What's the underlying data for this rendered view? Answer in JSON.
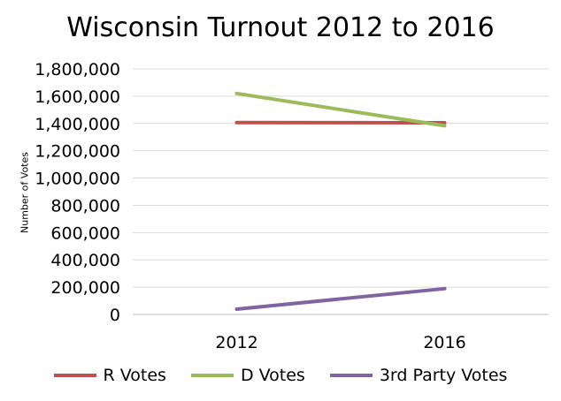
{
  "chart_data": {
    "type": "line",
    "title": "Wisconsin Turnout 2012 to 2016",
    "xlabel": "",
    "ylabel": "Number of Votes",
    "categories": [
      "2012",
      "2016"
    ],
    "ylim": [
      0,
      1800000
    ],
    "yticks": [
      0,
      200000,
      400000,
      600000,
      800000,
      1000000,
      1200000,
      1400000,
      1600000,
      1800000
    ],
    "ytick_labels": [
      "0",
      "200,000",
      "400,000",
      "600,000",
      "800,000",
      "1,000,000",
      "1,200,000",
      "1,400,000",
      "1,600,000",
      "1,800,000"
    ],
    "grid": true,
    "legend_position": "bottom",
    "series": [
      {
        "name": "R Votes",
        "color": "#c0504d",
        "values": [
          1407000,
          1405000
        ]
      },
      {
        "name": "D Votes",
        "color": "#9bbb59",
        "values": [
          1620000,
          1383000
        ]
      },
      {
        "name": "3rd Party Votes",
        "color": "#8064a2",
        "values": [
          39000,
          189000
        ]
      }
    ]
  }
}
